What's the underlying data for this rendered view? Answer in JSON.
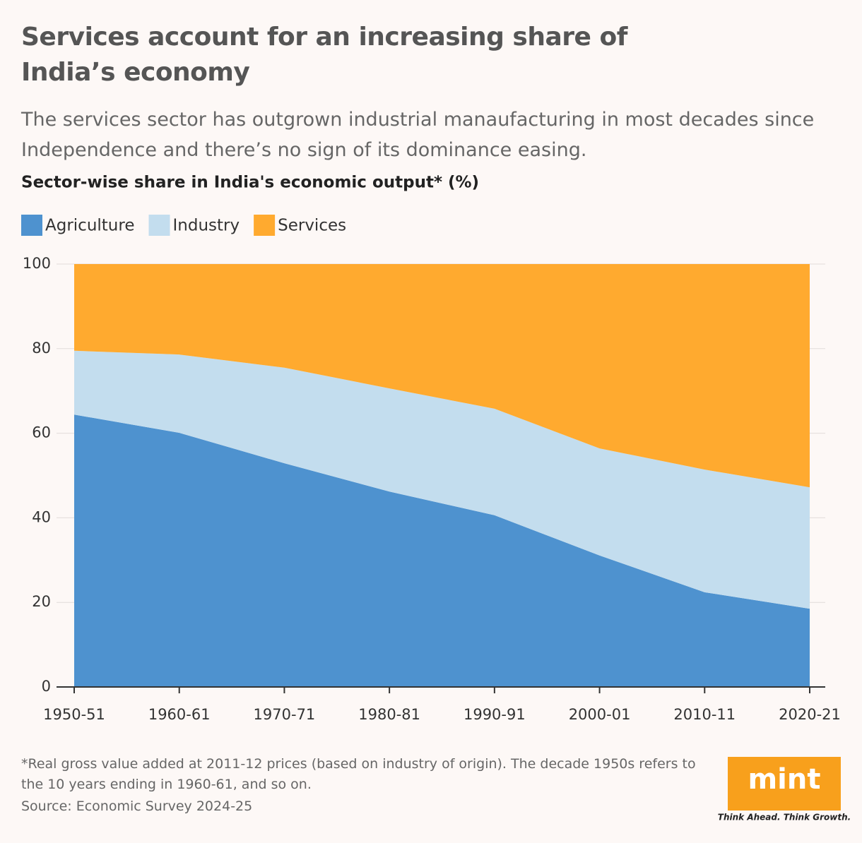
{
  "title": "Services account for an increasing share of India’s economy",
  "subtitle": "The services sector has outgrown industrial manaufacturing in most decades since Independence and there’s no sign of its dominance easing.",
  "footer": {
    "note": "*Real gross value added at 2011-12 prices (based on industry of origin). The decade 1950s refers to the 10 years ending in 1960-61, and so on.",
    "source": "Source: Economic Survey 2024-25",
    "logo": "mint",
    "tagline": "Think Ahead. Think Growth."
  },
  "chart_data": {
    "type": "stacked_area",
    "title": "Sector-wise share in India's economic output* (%)",
    "categories": [
      "1950-51",
      "1960-61",
      "1970-71",
      "1980-81",
      "1990-91",
      "2000-01",
      "2010-11",
      "2020-21"
    ],
    "series": [
      {
        "name": "Agriculture",
        "color": "#4e92cf",
        "values": [
          64.4,
          60.1,
          52.9,
          46.2,
          40.6,
          31.1,
          22.4,
          18.5
        ]
      },
      {
        "name": "Industry",
        "color": "#c3ddee",
        "values": [
          15.1,
          18.5,
          22.6,
          24.4,
          25.2,
          25.3,
          29.0,
          28.7
        ]
      },
      {
        "name": "Services",
        "color": "#ffaa2f",
        "values": [
          20.5,
          21.4,
          24.5,
          29.4,
          34.2,
          43.6,
          48.6,
          52.8
        ]
      }
    ],
    "ylim": [
      0,
      100
    ],
    "yticks": [
      0,
      20,
      40,
      60,
      80,
      100
    ],
    "grid": true,
    "legend": "top-left"
  }
}
